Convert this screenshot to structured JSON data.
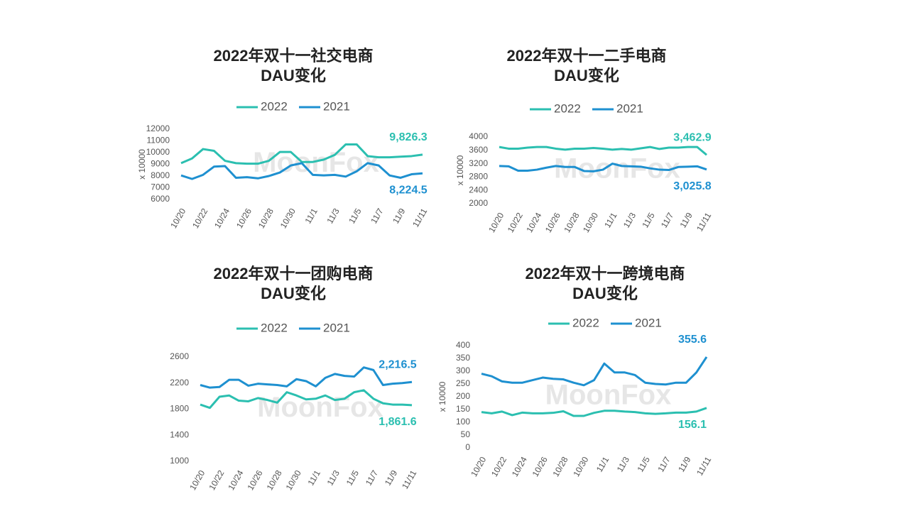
{
  "watermark": "MoonFox",
  "chart_data": [
    {
      "type": "line",
      "title": [
        "2022年双十一社交电商",
        "DAU变化"
      ],
      "y_label": "x 10000",
      "categories": [
        "10/20",
        null,
        "10/22",
        null,
        "10/24",
        null,
        "10/26",
        null,
        "10/28",
        null,
        "10/30",
        null,
        "11/1",
        null,
        "11/3",
        null,
        "11/5",
        null,
        "11/7",
        null,
        "11/9",
        null,
        "11/11"
      ],
      "ylim": [
        6000,
        12000
      ],
      "yticks": [
        6000,
        7000,
        8000,
        9000,
        10000,
        11000,
        12000
      ],
      "series": [
        {
          "name": "2022",
          "color": "#2bbfb0",
          "values": [
            9100,
            9500,
            10300,
            10150,
            9300,
            9100,
            9050,
            9050,
            9300,
            10050,
            10050,
            9200,
            9200,
            9400,
            9800,
            10700,
            10700,
            9700,
            9600,
            9600,
            9650,
            9700,
            9826.3
          ],
          "value_labels": [
            null,
            null,
            null,
            null,
            null,
            null,
            null,
            null,
            null,
            null,
            null,
            null,
            null,
            null,
            null,
            null,
            null,
            null,
            null,
            null,
            null,
            null,
            "9,826.3"
          ]
        },
        {
          "name": "2021",
          "color": "#1e90d0",
          "values": [
            8050,
            7750,
            8100,
            8800,
            8850,
            7850,
            7900,
            7800,
            8000,
            8300,
            8900,
            9100,
            8100,
            8050,
            8100,
            7950,
            8400,
            9100,
            8900,
            8050,
            7850,
            8150,
            8224.5
          ],
          "value_labels": [
            null,
            null,
            null,
            null,
            null,
            null,
            null,
            null,
            null,
            null,
            null,
            null,
            null,
            null,
            null,
            null,
            null,
            null,
            null,
            null,
            null,
            null,
            "8,224.5"
          ]
        }
      ]
    },
    {
      "type": "line",
      "title": [
        "2022年双十一二手电商",
        "DAU变化"
      ],
      "y_label": "x 10000",
      "categories": [
        "10/20",
        null,
        "10/22",
        null,
        "10/24",
        null,
        "10/26",
        null,
        "10/28",
        null,
        "10/30",
        null,
        "11/1",
        null,
        "11/3",
        null,
        "11/5",
        null,
        "11/7",
        null,
        "11/9",
        null,
        "11/11"
      ],
      "ylim": [
        2000,
        4000
      ],
      "yticks": [
        2000,
        2400,
        2800,
        3200,
        3600,
        4000
      ],
      "series": [
        {
          "name": "2022",
          "color": "#2bbfb0",
          "values": [
            3700,
            3650,
            3650,
            3680,
            3700,
            3700,
            3650,
            3620,
            3650,
            3650,
            3670,
            3650,
            3620,
            3640,
            3620,
            3660,
            3700,
            3640,
            3680,
            3680,
            3700,
            3700,
            3462.9
          ],
          "value_labels": [
            null,
            null,
            null,
            null,
            null,
            null,
            null,
            null,
            null,
            null,
            null,
            null,
            null,
            null,
            null,
            null,
            null,
            null,
            null,
            null,
            null,
            null,
            "3,462.9"
          ]
        },
        {
          "name": "2021",
          "color": "#1e90d0",
          "values": [
            3130,
            3120,
            2990,
            2990,
            3020,
            3080,
            3130,
            3100,
            3100,
            2980,
            2970,
            3020,
            3200,
            3130,
            3120,
            3110,
            3060,
            3020,
            3010,
            3100,
            3110,
            3120,
            3025.8
          ],
          "value_labels": [
            null,
            null,
            null,
            null,
            null,
            null,
            null,
            null,
            null,
            null,
            null,
            null,
            null,
            null,
            null,
            null,
            null,
            null,
            null,
            null,
            null,
            null,
            "3,025.8"
          ]
        }
      ]
    },
    {
      "type": "line",
      "title": [
        "2022年双十一团购电商",
        "DAU变化"
      ],
      "categories": [
        "10/20",
        null,
        "10/22",
        null,
        "10/24",
        null,
        "10/26",
        null,
        "10/28",
        null,
        "10/30",
        null,
        "11/1",
        null,
        "11/3",
        null,
        "11/5",
        null,
        "11/7",
        null,
        "11/9",
        null,
        "11/11"
      ],
      "ylim": [
        1000,
        2600
      ],
      "yticks": [
        1000,
        1400,
        1800,
        2200,
        2600
      ],
      "series": [
        {
          "name": "2022",
          "color": "#2bbfb0",
          "values": [
            1870,
            1820,
            1990,
            2010,
            1930,
            1920,
            1970,
            1940,
            1900,
            2060,
            2010,
            1950,
            1960,
            2010,
            1940,
            1960,
            2060,
            2090,
            1960,
            1890,
            1870,
            1870,
            1861.6
          ],
          "value_labels": [
            null,
            null,
            null,
            null,
            null,
            null,
            null,
            null,
            null,
            null,
            null,
            null,
            null,
            null,
            null,
            null,
            null,
            null,
            null,
            null,
            null,
            null,
            "1,861.6"
          ]
        },
        {
          "name": "2021",
          "color": "#1e90d0",
          "values": [
            2170,
            2130,
            2140,
            2250,
            2250,
            2160,
            2190,
            2180,
            2170,
            2150,
            2260,
            2230,
            2150,
            2280,
            2340,
            2310,
            2300,
            2440,
            2400,
            2170,
            2190,
            2200,
            2216.5
          ],
          "value_labels": [
            null,
            null,
            null,
            null,
            null,
            null,
            null,
            null,
            null,
            null,
            null,
            null,
            null,
            null,
            null,
            null,
            null,
            null,
            null,
            null,
            null,
            null,
            "2,216.5"
          ]
        }
      ]
    },
    {
      "type": "line",
      "title": [
        "2022年双十一跨境电商",
        "DAU变化"
      ],
      "y_label": "x 10000",
      "categories": [
        "10/20",
        null,
        "10/22",
        null,
        "10/24",
        null,
        "10/26",
        null,
        "10/28",
        null,
        "10/30",
        null,
        "11/1",
        null,
        "11/3",
        null,
        "11/5",
        null,
        "11/7",
        null,
        "11/9",
        null,
        "11/11"
      ],
      "ylim": [
        0,
        400
      ],
      "yticks": [
        0,
        50,
        100,
        150,
        200,
        250,
        300,
        350,
        400
      ],
      "series": [
        {
          "name": "2022",
          "color": "#2bbfb0",
          "values": [
            140,
            135,
            142,
            128,
            138,
            135,
            135,
            137,
            143,
            125,
            125,
            137,
            145,
            145,
            142,
            140,
            135,
            133,
            135,
            138,
            138,
            142,
            156.1
          ],
          "value_labels": [
            null,
            null,
            null,
            null,
            null,
            null,
            null,
            null,
            null,
            null,
            null,
            null,
            null,
            null,
            null,
            null,
            null,
            null,
            null,
            null,
            null,
            null,
            "156.1"
          ]
        },
        {
          "name": "2021",
          "color": "#1e90d0",
          "values": [
            290,
            280,
            260,
            255,
            255,
            265,
            275,
            270,
            268,
            255,
            245,
            265,
            330,
            295,
            295,
            285,
            255,
            250,
            248,
            255,
            255,
            295,
            355.6
          ],
          "value_labels": [
            null,
            null,
            null,
            null,
            null,
            null,
            null,
            null,
            null,
            null,
            null,
            null,
            null,
            null,
            null,
            null,
            null,
            null,
            null,
            null,
            null,
            null,
            "355.6"
          ]
        }
      ]
    }
  ]
}
